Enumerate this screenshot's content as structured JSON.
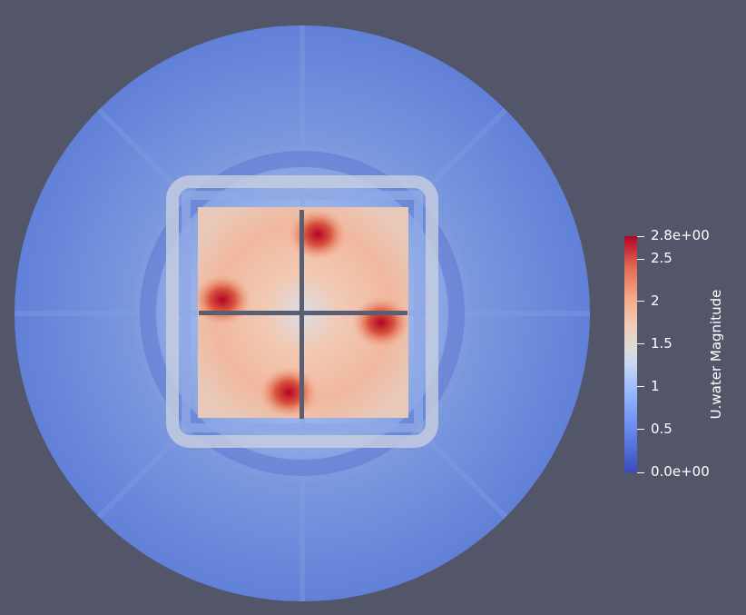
{
  "colors": {
    "background": "#535669",
    "colormap_low": "#3b4cc0",
    "colormap_mid": "#dddcdc",
    "colormap_high": "#b40426",
    "frame_lines": "#5a5e73"
  },
  "colorbar": {
    "title": "U.water Magnitude",
    "ticks": [
      "2.8e+00",
      "2.5",
      "2",
      "1.5",
      "1",
      "0.5",
      "0.0e+00"
    ],
    "range": [
      0.0,
      2.8
    ]
  }
}
